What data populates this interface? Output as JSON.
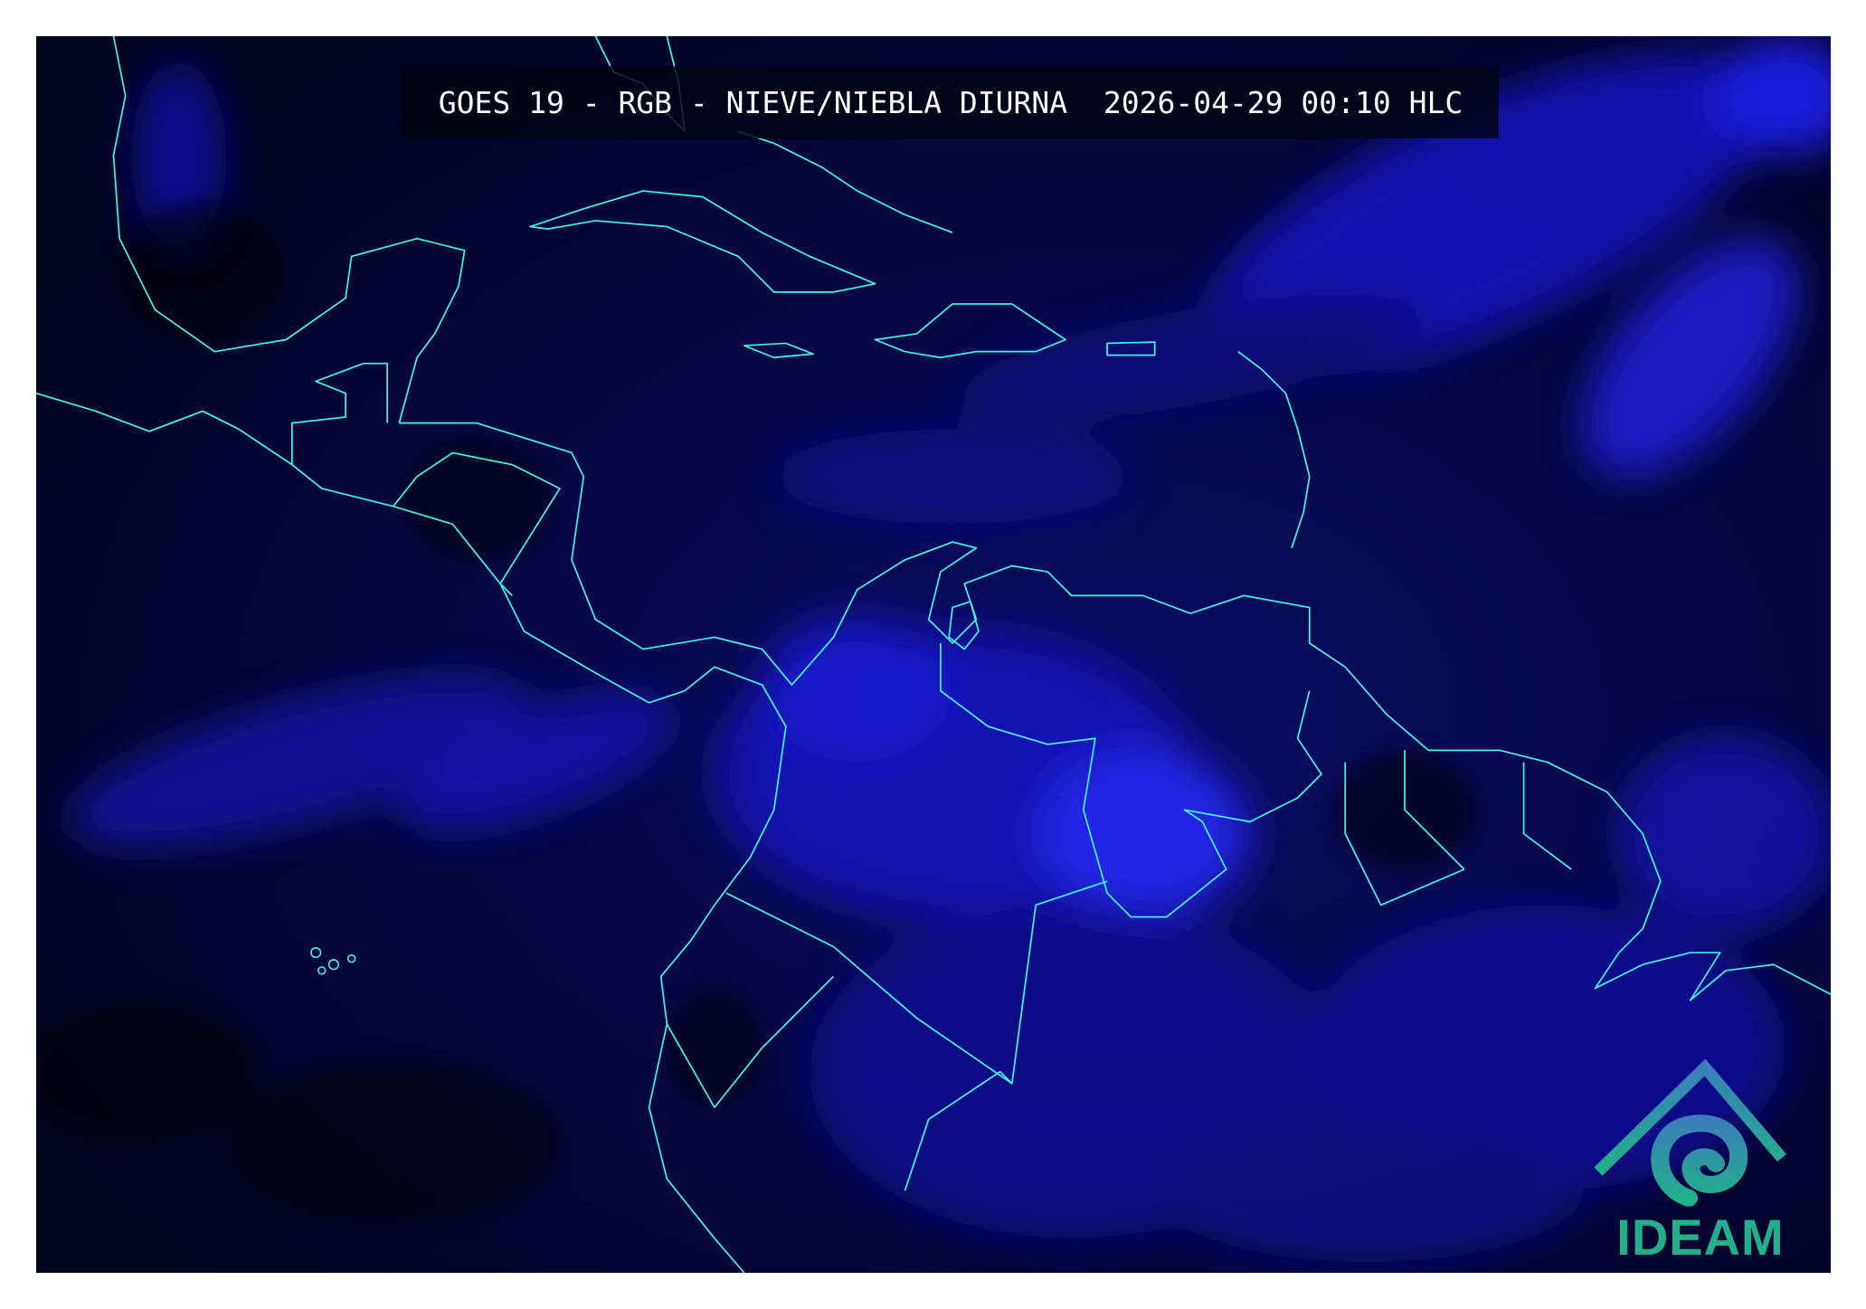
{
  "header": {
    "title": "GOES 19 - RGB - NIEVE/NIEBLA DIURNA  2026-04-29 00:10 HLC"
  },
  "logo": {
    "text": "IDEAM",
    "color": "#22b08a"
  },
  "map": {
    "coastline_color": "#3ff5e6",
    "background_color": "#03042a",
    "cloud_color": "#1a1aff"
  }
}
